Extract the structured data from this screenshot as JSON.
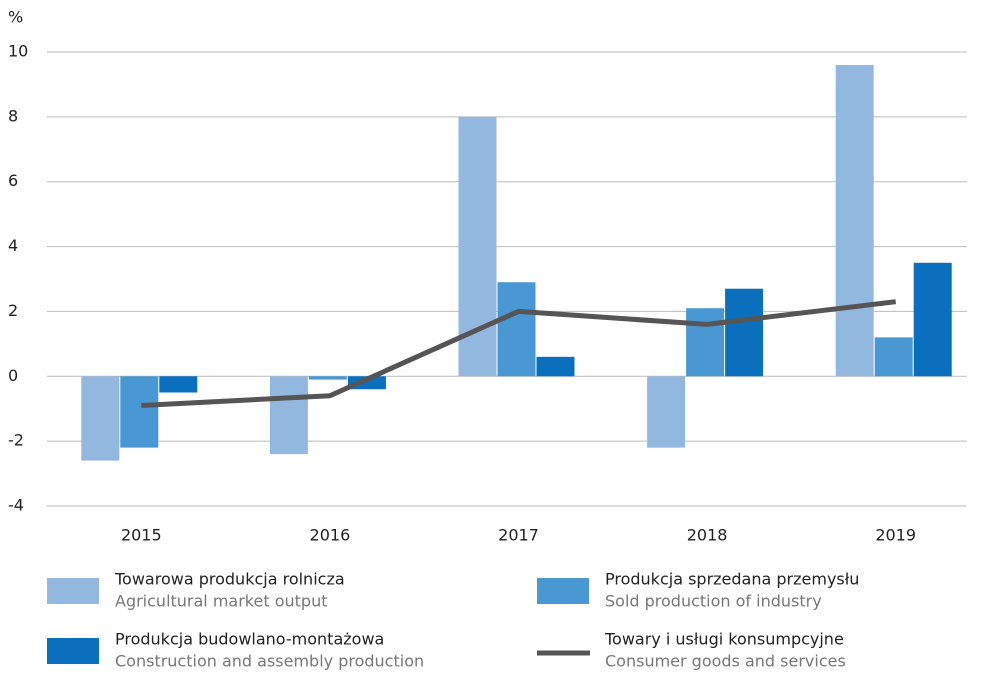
{
  "chart_data": {
    "type": "bar_line",
    "y_label": "%",
    "categories": [
      "2015",
      "2016",
      "2017",
      "2018",
      "2019"
    ],
    "series": [
      {
        "name": "Towarowa produkcja rolnicza",
        "name_en": "Agricultural market output",
        "type": "bar",
        "color": "#93b8df",
        "values": [
          -2.6,
          -2.4,
          8.0,
          -2.2,
          9.6
        ]
      },
      {
        "name": "Produkcja sprzedana przemysłu",
        "name_en": "Sold production of industry",
        "type": "bar",
        "color": "#4a98d3",
        "values": [
          -2.2,
          -0.1,
          2.9,
          2.1,
          1.2
        ]
      },
      {
        "name": "Produkcja budowlano-montażowa",
        "name_en": "Construction and assembly production",
        "type": "bar",
        "color": "#0a6fbd",
        "values": [
          -0.5,
          -0.4,
          0.6,
          2.7,
          3.5
        ]
      },
      {
        "name": "Towary i usługi konsumpcyjne",
        "name_en": "Consumer goods and services",
        "type": "line",
        "color": "#555555",
        "values": [
          -0.9,
          -0.6,
          2.0,
          1.6,
          2.3
        ]
      }
    ],
    "ylim": [
      -4,
      10
    ],
    "yticks": [
      -4,
      -2,
      0,
      2,
      4,
      6,
      8,
      10
    ],
    "grid": true
  }
}
